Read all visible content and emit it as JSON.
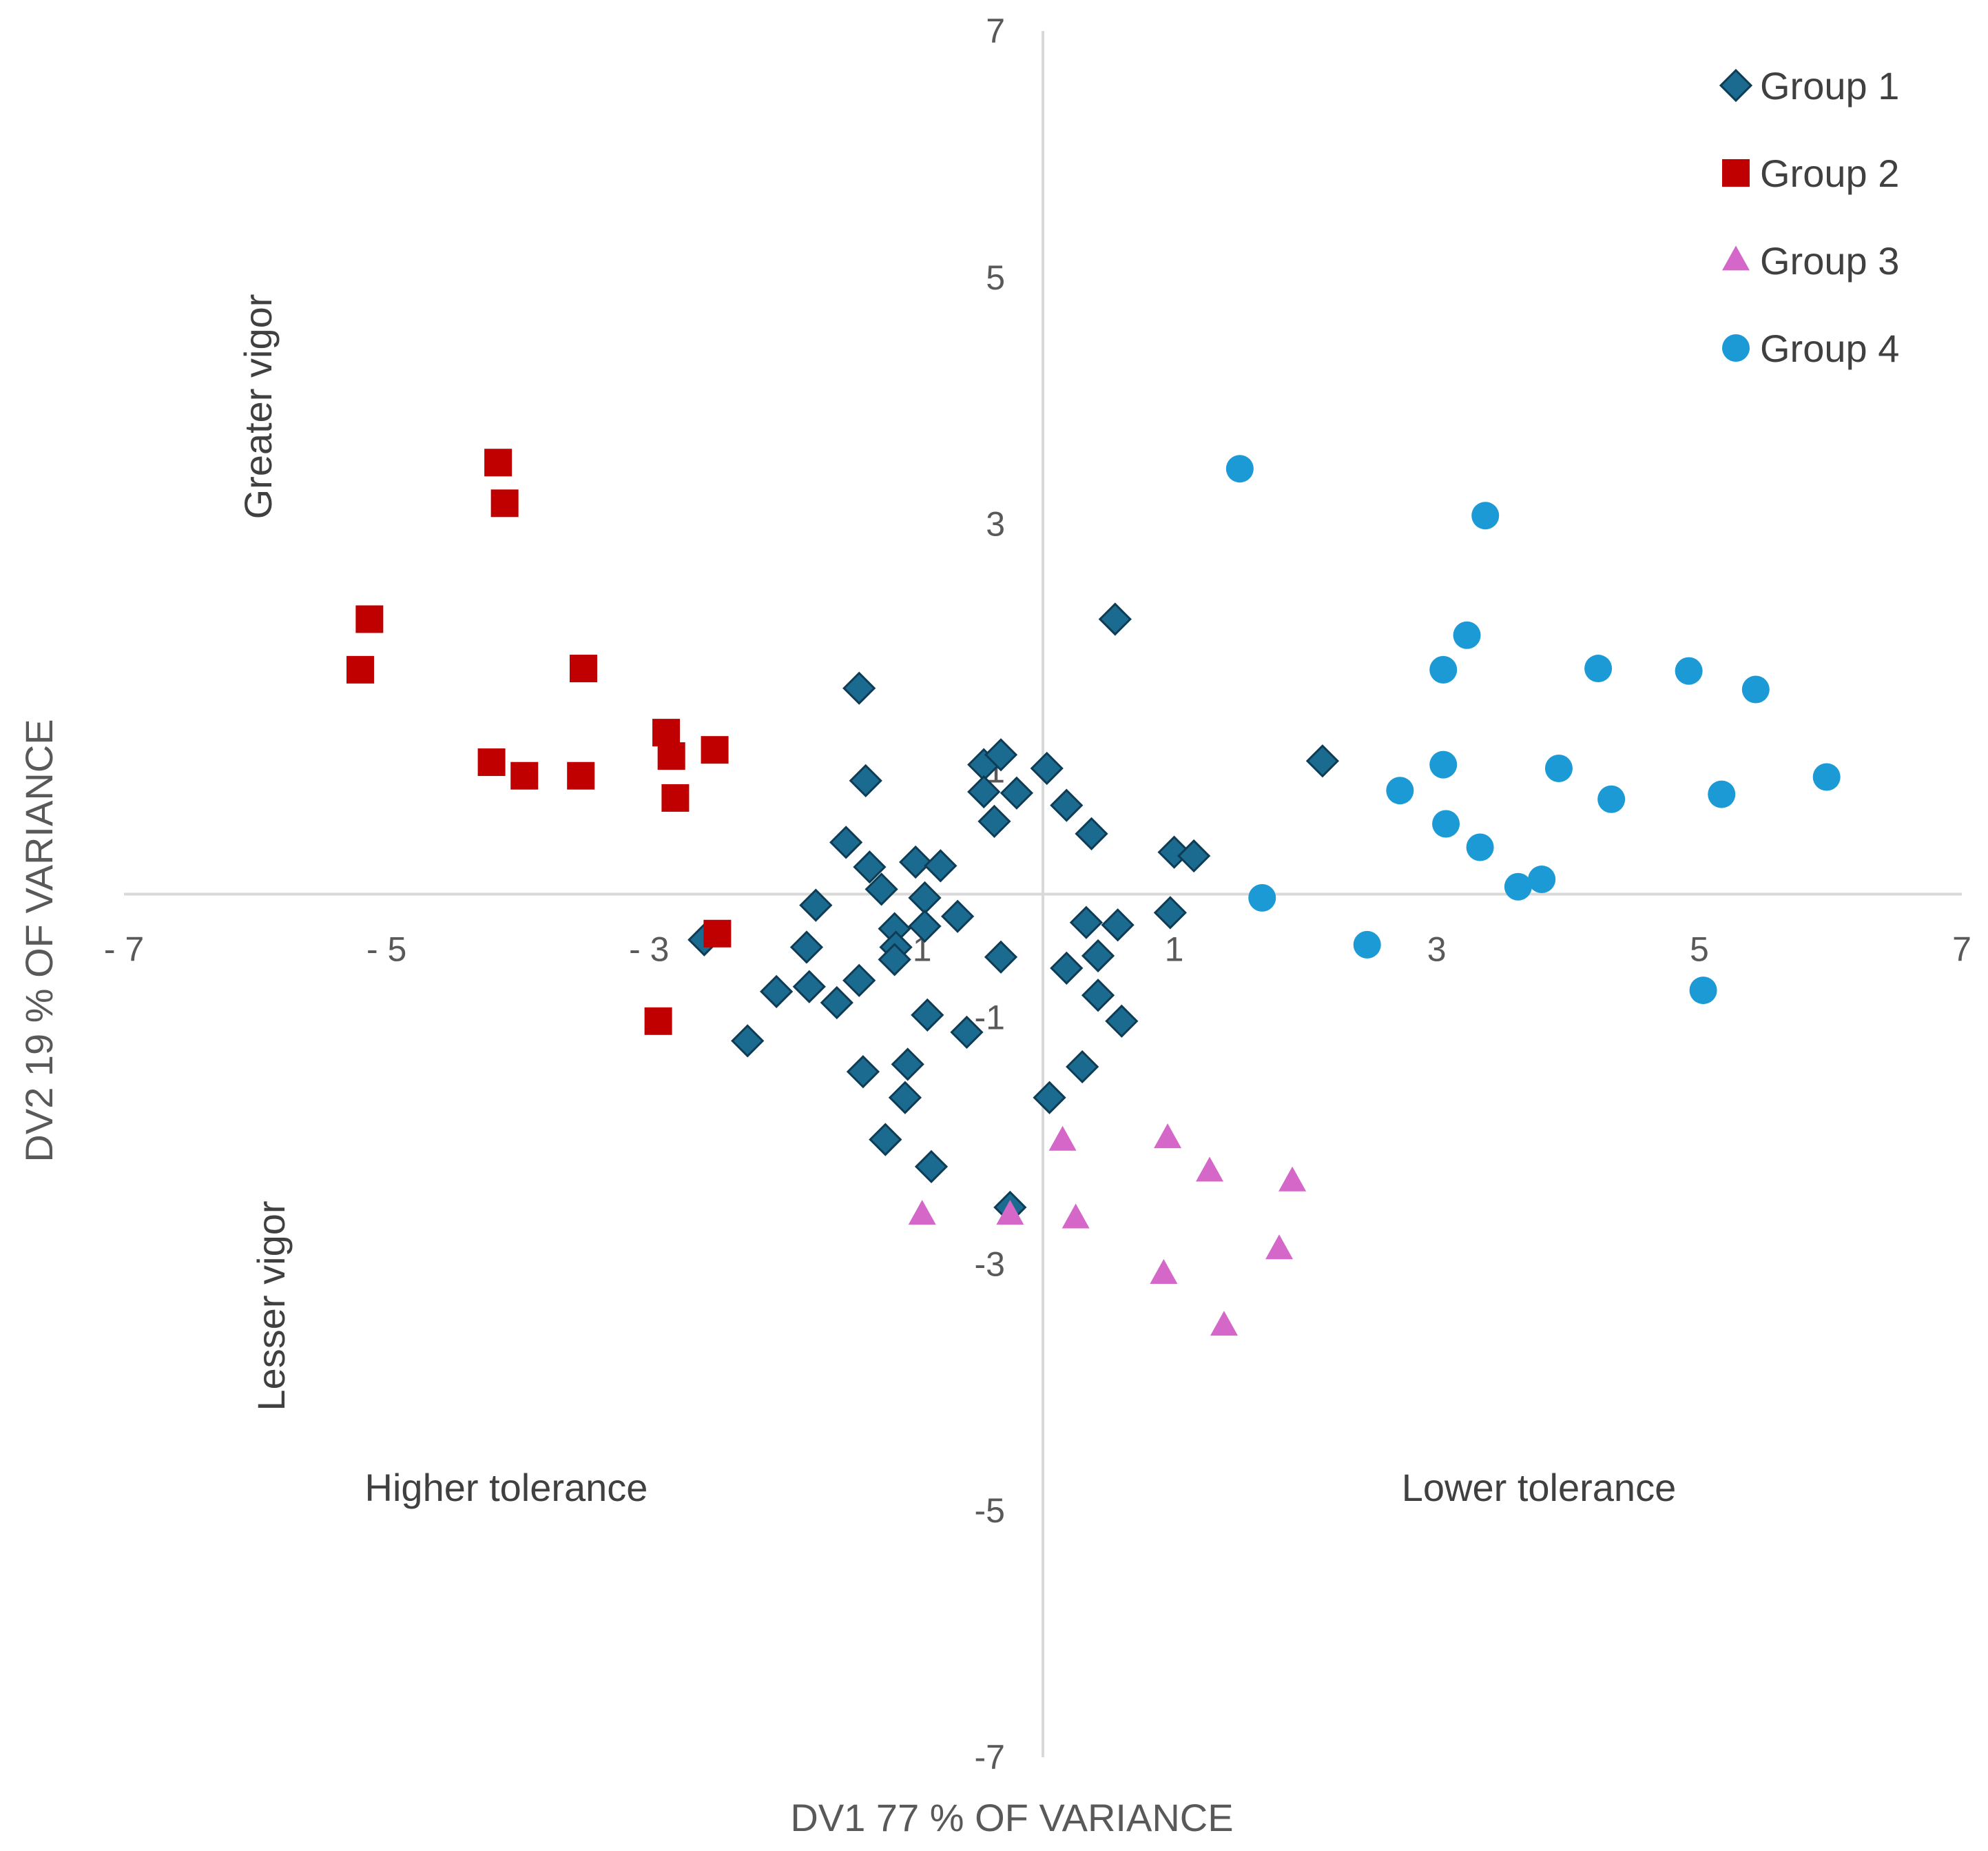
{
  "chart_data": {
    "type": "scatter",
    "title": "",
    "xlabel": "DV1 77 % OF VARIANCE",
    "ylabel": "DV2 19 % OF VARIANCE",
    "xlim": [
      -7,
      7
    ],
    "ylim": [
      -7,
      7
    ],
    "x_ticks": [
      {
        "value": -7,
        "label": "-7"
      },
      {
        "value": -5,
        "label": "-5"
      },
      {
        "value": -3,
        "label": "-3"
      },
      {
        "value": -1,
        "label": "-1"
      },
      {
        "value": 1,
        "label": "1"
      },
      {
        "value": 3,
        "label": "3"
      },
      {
        "value": 5,
        "label": "5"
      },
      {
        "value": 7,
        "label": "7"
      }
    ],
    "y_ticks": [
      {
        "value": 7,
        "label": "7"
      },
      {
        "value": 5,
        "label": "5"
      },
      {
        "value": 3,
        "label": "3"
      },
      {
        "value": 1,
        "label": "1"
      },
      {
        "value": -1,
        "label": "-1"
      },
      {
        "value": -3,
        "label": "-3"
      },
      {
        "value": -5,
        "label": "-5"
      },
      {
        "value": -7,
        "label": "-7"
      }
    ],
    "grid": false,
    "legend_position": "top-right",
    "annotations": {
      "greater_vigor": "Greater vigor",
      "lesser_vigor": "Lesser vigor",
      "higher_tolerance": "Higher tolerance",
      "lower_tolerance": "Lower tolerance"
    },
    "series": [
      {
        "name": "Group 1",
        "marker": "diamond",
        "color": "#1B6A8F",
        "points": [
          [
            0.55,
            2.23
          ],
          [
            -1.4,
            1.67
          ],
          [
            2.13,
            1.08
          ],
          [
            -1.35,
            0.92
          ],
          [
            -0.45,
            1.05
          ],
          [
            -0.32,
            1.13
          ],
          [
            0.03,
            1.02
          ],
          [
            -0.45,
            0.83
          ],
          [
            -0.2,
            0.82
          ],
          [
            0.18,
            0.72
          ],
          [
            -0.37,
            0.59
          ],
          [
            0.37,
            0.49
          ],
          [
            -1.5,
            0.42
          ],
          [
            1.0,
            0.34
          ],
          [
            1.15,
            0.31
          ],
          [
            -0.97,
            0.26
          ],
          [
            -1.32,
            0.22
          ],
          [
            -0.78,
            0.23
          ],
          [
            -1.23,
            0.04
          ],
          [
            -1.73,
            -0.09
          ],
          [
            -0.9,
            -0.03
          ],
          [
            -0.65,
            -0.18
          ],
          [
            -0.9,
            -0.26
          ],
          [
            -1.13,
            -0.28
          ],
          [
            0.33,
            -0.23
          ],
          [
            0.57,
            -0.25
          ],
          [
            0.97,
            -0.15
          ],
          [
            -1.8,
            -0.43
          ],
          [
            -1.12,
            -0.43
          ],
          [
            -1.13,
            -0.53
          ],
          [
            -0.32,
            -0.51
          ],
          [
            0.42,
            -0.5
          ],
          [
            0.18,
            -0.6
          ],
          [
            -1.4,
            -0.7
          ],
          [
            -1.78,
            -0.75
          ],
          [
            -2.03,
            -0.79
          ],
          [
            -1.57,
            -0.88
          ],
          [
            0.42,
            -0.82
          ],
          [
            -0.88,
            -0.98
          ],
          [
            -0.58,
            -1.12
          ],
          [
            0.6,
            -1.03
          ],
          [
            -2.58,
            -0.37
          ],
          [
            -2.25,
            -1.19
          ],
          [
            -1.37,
            -1.44
          ],
          [
            -1.03,
            -1.38
          ],
          [
            0.3,
            -1.4
          ],
          [
            -1.05,
            -1.65
          ],
          [
            0.05,
            -1.65
          ],
          [
            -1.2,
            -1.99
          ],
          [
            -0.85,
            -2.21
          ],
          [
            -0.25,
            -2.54
          ]
        ]
      },
      {
        "name": "Group 2",
        "marker": "square",
        "color": "#C00000",
        "points": [
          [
            -4.15,
            3.5
          ],
          [
            -4.1,
            3.17
          ],
          [
            -5.13,
            2.23
          ],
          [
            -5.2,
            1.82
          ],
          [
            -3.5,
            1.83
          ],
          [
            -2.87,
            1.31
          ],
          [
            -2.5,
            1.17
          ],
          [
            -2.83,
            1.12
          ],
          [
            -4.2,
            1.07
          ],
          [
            -3.95,
            0.96
          ],
          [
            -3.52,
            0.96
          ],
          [
            -2.8,
            0.78
          ],
          [
            -2.48,
            -0.32
          ],
          [
            -2.93,
            -1.03
          ]
        ]
      },
      {
        "name": "Group 3",
        "marker": "triangle",
        "color": "#D467C8",
        "points": [
          [
            0.15,
            -2.0
          ],
          [
            0.95,
            -1.98
          ],
          [
            1.27,
            -2.25
          ],
          [
            1.9,
            -2.33
          ],
          [
            -0.92,
            -2.6
          ],
          [
            -0.25,
            -2.6
          ],
          [
            0.25,
            -2.63
          ],
          [
            1.8,
            -2.88
          ],
          [
            0.92,
            -3.08
          ],
          [
            1.38,
            -3.5
          ]
        ]
      },
      {
        "name": "Group 4",
        "marker": "circle",
        "color": "#1B9AD6",
        "points": [
          [
            1.5,
            3.45
          ],
          [
            3.37,
            3.07
          ],
          [
            3.23,
            2.1
          ],
          [
            3.05,
            1.82
          ],
          [
            4.23,
            1.83
          ],
          [
            4.92,
            1.81
          ],
          [
            5.43,
            1.66
          ],
          [
            3.05,
            1.05
          ],
          [
            3.93,
            1.02
          ],
          [
            5.97,
            0.95
          ],
          [
            2.72,
            0.84
          ],
          [
            4.33,
            0.77
          ],
          [
            5.17,
            0.81
          ],
          [
            3.07,
            0.57
          ],
          [
            3.33,
            0.38
          ],
          [
            3.8,
            0.12
          ],
          [
            3.62,
            0.06
          ],
          [
            1.67,
            -0.03
          ],
          [
            2.47,
            -0.41
          ],
          [
            5.03,
            -0.78
          ]
        ]
      }
    ]
  }
}
